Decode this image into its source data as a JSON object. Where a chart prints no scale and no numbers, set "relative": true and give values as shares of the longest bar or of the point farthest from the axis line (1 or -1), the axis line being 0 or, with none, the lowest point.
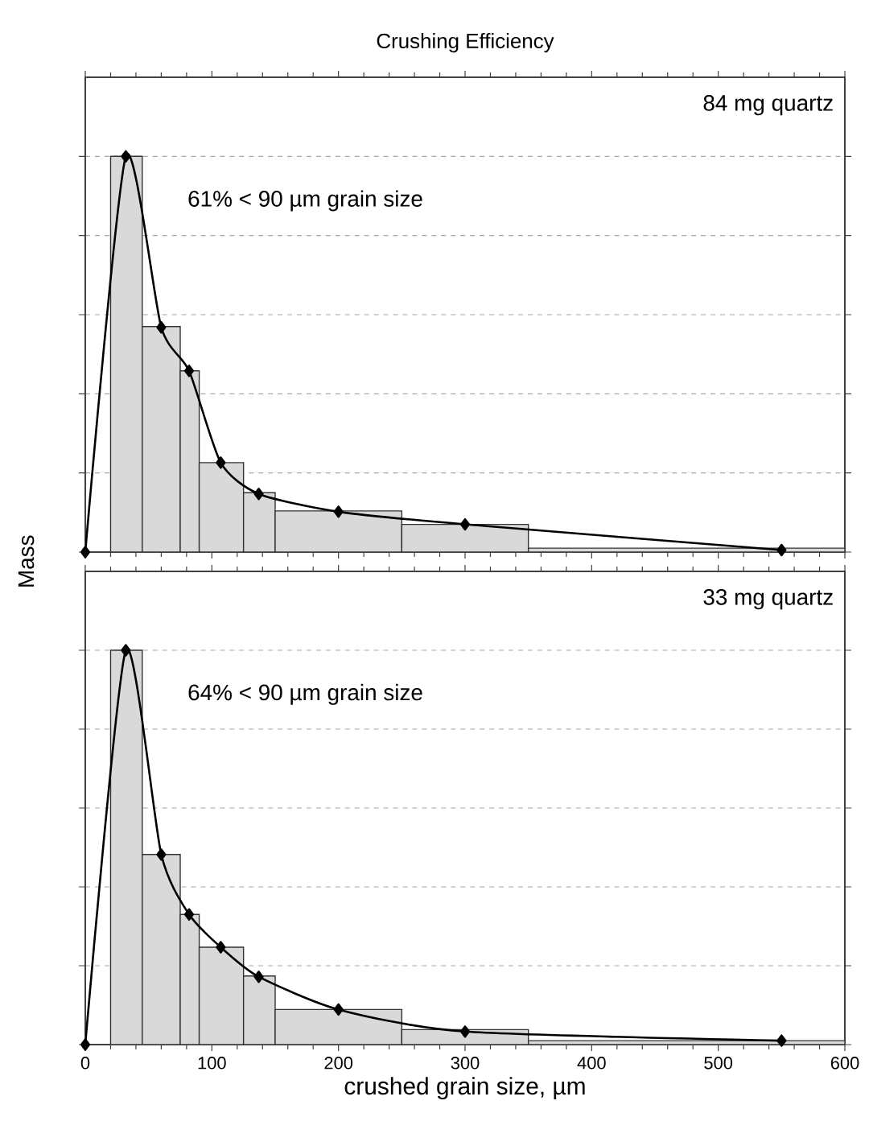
{
  "chart_data": [
    {
      "type": "histogram",
      "title": "Crushing Efficiency",
      "ylabel": "Mass",
      "relative": true,
      "color": "#d9d9d9",
      "bins": [
        20,
        45,
        75,
        90,
        125,
        150,
        250,
        350,
        600
      ],
      "values": [
        1.0,
        0.57,
        0.458,
        0.226,
        0.15,
        0.104,
        0.07,
        0.01
      ],
      "series": [
        {
          "type": "line",
          "color": "#000000",
          "x": [
            0,
            32,
            60,
            82,
            107,
            137,
            200,
            300,
            550
          ],
          "values": [
            0,
            1.0,
            0.568,
            0.458,
            0.226,
            0.147,
            0.102,
            0.07,
            0.005
          ]
        }
      ],
      "marker": "diamond",
      "xlim": [
        0,
        600
      ],
      "xticks": [
        0,
        100,
        200,
        300,
        400,
        500,
        600
      ],
      "grid": "y",
      "tick_labels": false,
      "annotations": [
        "84 mg quartz",
        "61% < 90 µm grain size"
      ]
    },
    {
      "type": "histogram",
      "xlabel": "crushed grain size, µm",
      "relative": true,
      "color": "#d9d9d9",
      "bins": [
        20,
        45,
        75,
        90,
        125,
        150,
        250,
        350,
        600
      ],
      "values": [
        1.0,
        0.482,
        0.33,
        0.247,
        0.174,
        0.089,
        0.038,
        0.01
      ],
      "series": [
        {
          "type": "line",
          "color": "#000000",
          "x": [
            0,
            32,
            60,
            82,
            107,
            137,
            200,
            300,
            550
          ],
          "values": [
            0,
            1.0,
            0.482,
            0.33,
            0.247,
            0.172,
            0.089,
            0.033,
            0.01
          ]
        }
      ],
      "marker": "diamond",
      "xlim": [
        0,
        600
      ],
      "xticks": [
        0,
        100,
        200,
        300,
        400,
        500,
        600
      ],
      "grid": "y",
      "tick_labels": "x",
      "annotations": [
        "33 mg quartz",
        "64% < 90 µm grain size"
      ]
    }
  ]
}
